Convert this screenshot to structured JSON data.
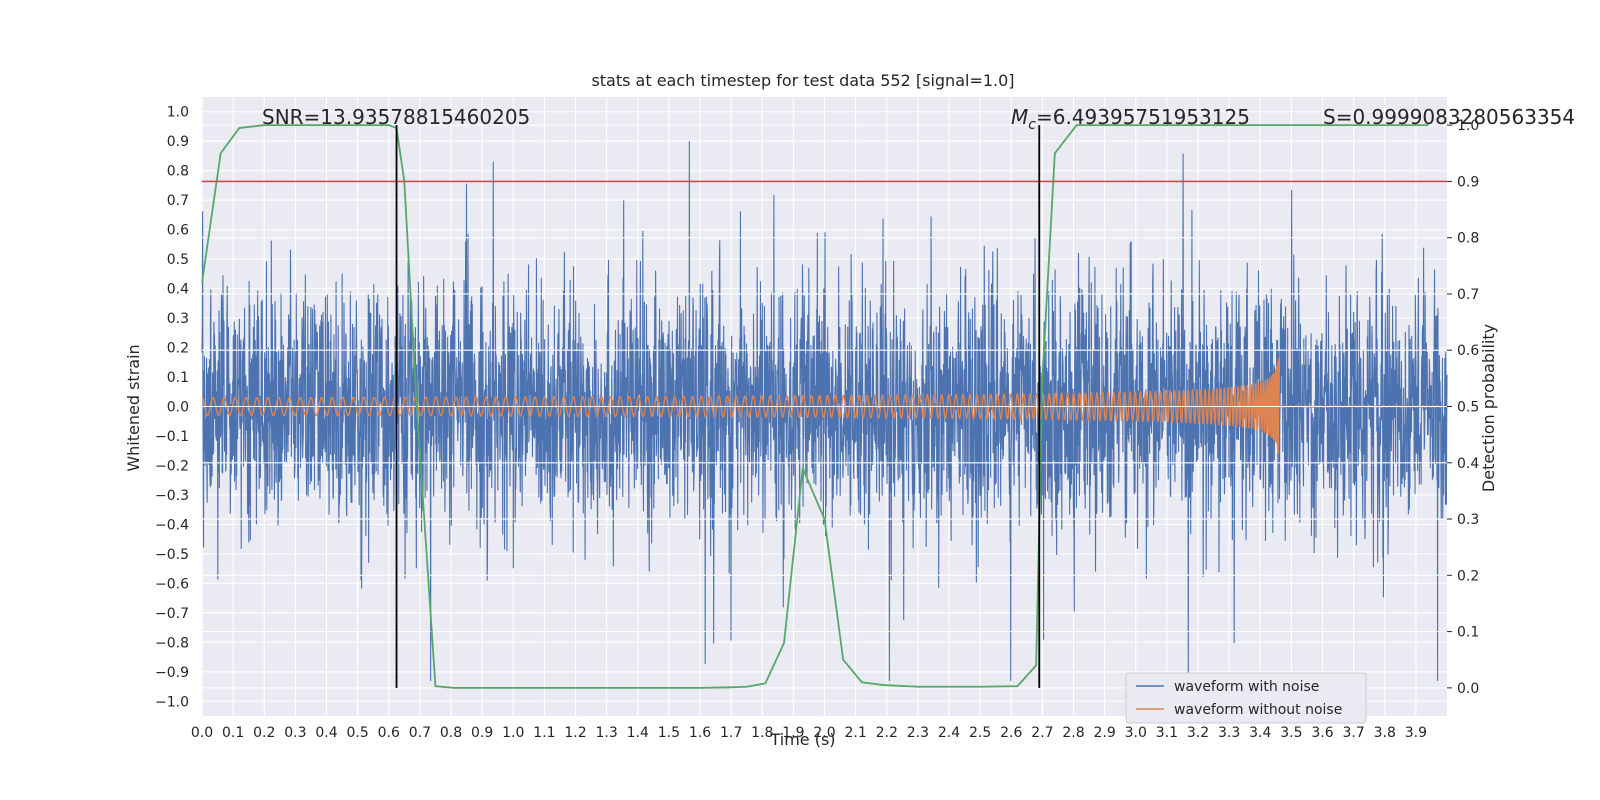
{
  "chart_data": {
    "type": "line",
    "title": "stats at each timestep for test data 552 [signal=1.0]",
    "xlabel": "Time (s)",
    "ylabel": "Whitened strain",
    "y2label": "Detection probability",
    "xlim": [
      0.0,
      4.0
    ],
    "ylim": [
      -1.05,
      1.05
    ],
    "y2lim": [
      -0.05,
      1.05
    ],
    "x_ticks": [
      0.0,
      0.1,
      0.2,
      0.3,
      0.4,
      0.5,
      0.6,
      0.7,
      0.8,
      0.9,
      1.0,
      1.1,
      1.2,
      1.3,
      1.4,
      1.5,
      1.6,
      1.7,
      1.8,
      1.9,
      2.0,
      2.1,
      2.2,
      2.3,
      2.4,
      2.5,
      2.6,
      2.7,
      2.8,
      2.9,
      3.0,
      3.1,
      3.2,
      3.3,
      3.4,
      3.5,
      3.6,
      3.7,
      3.8,
      3.9
    ],
    "x_tick_labels": [
      "0.0",
      "0.1",
      "0.2",
      "0.3",
      "0.4",
      "0.5",
      "0.6",
      "0.7",
      "0.8",
      "0.9",
      "1.0",
      "1.1",
      "1.2",
      "1.3",
      "1.4",
      "1.5",
      "1.6",
      "1.7",
      "1.8",
      "1.9",
      "2.0",
      "2.1",
      "2.2",
      "2.3",
      "2.4",
      "2.5",
      "2.6",
      "2.7",
      "2.8",
      "2.9",
      "3.0",
      "3.1",
      "3.2",
      "3.3",
      "3.4",
      "3.5",
      "3.6",
      "3.7",
      "3.8",
      "3.9"
    ],
    "y_ticks": [
      1.0,
      0.9,
      0.8,
      0.7,
      0.6,
      0.5,
      0.4,
      0.3,
      0.2,
      0.1,
      0.0,
      -0.1,
      -0.2,
      -0.3,
      -0.4,
      -0.5,
      -0.6,
      -0.7,
      -0.8,
      -0.9,
      -1.0
    ],
    "y_tick_labels": [
      "1.0",
      "0.9",
      "0.8",
      "0.7",
      "0.6",
      "0.5",
      "0.4",
      "0.3",
      "0.2",
      "0.1",
      "0.0",
      "−0.1",
      "−0.2",
      "−0.3",
      "−0.4",
      "−0.5",
      "−0.6",
      "−0.7",
      "−0.8",
      "−0.9",
      "−1.0"
    ],
    "y2_ticks": [
      1.0,
      0.9,
      0.8,
      0.7,
      0.6,
      0.5,
      0.4,
      0.3,
      0.2,
      0.1,
      0.0
    ],
    "y2_tick_labels": [
      "1.0",
      "0.9",
      "0.8",
      "0.7",
      "0.6",
      "0.5",
      "0.4",
      "0.3",
      "0.2",
      "0.1",
      "0.0"
    ],
    "grid": true,
    "legend_position": "bottom-right",
    "series": [
      {
        "name": "waveform with noise",
        "color": "#4c72b0",
        "axis": "left",
        "x_range": [
          0.0,
          4.0
        ],
        "amplitude_range": [
          -0.93,
          0.98
        ]
      },
      {
        "name": "waveform without noise",
        "color": "#dd8452",
        "axis": "left",
        "x_range": [
          0.0,
          3.46
        ],
        "merger_time": 3.46,
        "start_amplitude": 0.03,
        "peak_amplitude": 0.34
      },
      {
        "color": "#55a868",
        "axis": "right",
        "x": [
          0.0,
          0.06,
          0.12,
          0.2,
          0.3,
          0.4,
          0.5,
          0.6,
          0.625,
          0.65,
          0.69,
          0.75,
          0.81,
          1.0,
          1.2,
          1.4,
          1.6,
          1.7,
          1.75,
          1.81,
          1.87,
          1.93,
          2.0,
          2.06,
          2.12,
          2.19,
          2.3,
          2.5,
          2.62,
          2.68,
          2.7,
          2.74,
          2.81,
          2.9,
          3.0,
          3.2,
          3.4,
          3.6,
          3.8,
          3.94
        ],
        "y": [
          0.72,
          0.95,
          0.995,
          1.0,
          1.0,
          1.0,
          1.0,
          1.0,
          0.995,
          0.9,
          0.5,
          0.003,
          0.0,
          0.0,
          0.0,
          0.0,
          0.0,
          0.001,
          0.002,
          0.008,
          0.08,
          0.39,
          0.3,
          0.05,
          0.01,
          0.005,
          0.002,
          0.002,
          0.003,
          0.04,
          0.55,
          0.95,
          1.0,
          1.0,
          1.0,
          1.0,
          1.0,
          1.0,
          1.0,
          1.0
        ]
      }
    ],
    "threshold_line": {
      "y": 0.9,
      "axis": "right",
      "color": "#c44e52"
    },
    "vertical_lines": [
      {
        "x": 0.625,
        "y_range": [
          0.0,
          1.0
        ],
        "axis": "right",
        "color": "#000000"
      },
      {
        "x": 2.69,
        "y_range": [
          0.0,
          1.0
        ],
        "axis": "right",
        "color": "#000000"
      }
    ],
    "annotations": {
      "snr": "SNR=13.93578815460205",
      "mc_symbol": "M",
      "mc_subscript": "c",
      "mc_value": "=6.49395751953125",
      "s_value": "S=0.9999083280563354"
    }
  }
}
